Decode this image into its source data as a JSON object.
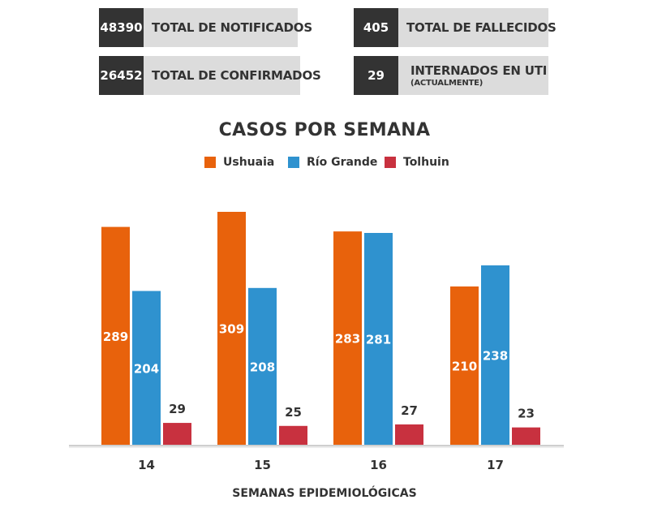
{
  "stats": [
    {
      "value": "48390",
      "label": "TOTAL DE NOTIFICADOS",
      "sublabel": ""
    },
    {
      "value": "26452",
      "label": "TOTAL DE CONFIRMADOS",
      "sublabel": ""
    },
    {
      "value": "405",
      "label": "TOTAL DE FALLECIDOS",
      "sublabel": ""
    },
    {
      "value": "29",
      "label": "INTERNADOS EN UTI",
      "sublabel": "(ACTUALMENTE)"
    }
  ],
  "colors": {
    "stat_number_bg": "#333333",
    "stat_label_bg": "#dcdcdc",
    "Ushuaia": "#e8620c",
    "Río Grande": "#2f92cf",
    "Tolhuin": "#c8313f"
  },
  "chart_data": {
    "type": "bar",
    "title": "CASOS POR SEMANA",
    "xlabel": "SEMANAS EPIDEMIOLÓGICAS",
    "ylabel": "",
    "categories": [
      "14",
      "15",
      "16",
      "17"
    ],
    "series": [
      {
        "name": "Ushuaia",
        "values": [
          289,
          309,
          283,
          210
        ],
        "color": "#e8620c"
      },
      {
        "name": "Río Grande",
        "values": [
          204,
          208,
          281,
          238
        ],
        "color": "#2f92cf"
      },
      {
        "name": "Tolhuin",
        "values": [
          29,
          25,
          27,
          23
        ],
        "color": "#c8313f"
      }
    ],
    "ylim": [
      0,
      309
    ],
    "grid": false,
    "legend": "top-center"
  }
}
